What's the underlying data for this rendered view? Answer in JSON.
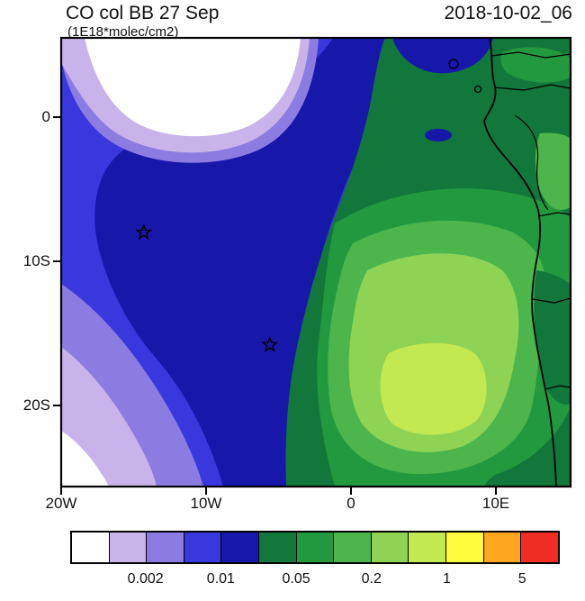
{
  "header": {
    "title": "CO col BB 27 Sep",
    "units_label": "(1E18*molec/cm2)",
    "timestamp": "2018-10-02_06"
  },
  "chart_data": {
    "type": "heatmap",
    "subtype": "filled-contour geographic map",
    "title": "CO col BB 27 Sep",
    "units_label": "(1E18*molec/cm2)",
    "timestamp": "2018-10-02_06",
    "region": "Gulf of Guinea / southeastern Atlantic / west-central Africa",
    "lon_range": [
      -20,
      15.2
    ],
    "lat_range": [
      -25.6,
      5.5
    ],
    "lon_tick_labels": [
      "20W",
      "10W",
      "0",
      "10E"
    ],
    "lon_tick_values": [
      -20,
      -10,
      0,
      10
    ],
    "lat_tick_labels": [
      "0",
      "10S",
      "20S"
    ],
    "lat_tick_values": [
      0,
      -10,
      -20
    ],
    "grid": false,
    "colorbar_position": "bottom",
    "levels": [
      0.001,
      0.002,
      0.005,
      0.01,
      0.02,
      0.05,
      0.1,
      0.2,
      0.5,
      1,
      2,
      5
    ],
    "colors": [
      "#FFFFFF",
      "#C8B4EA",
      "#8C7CE2",
      "#3838DE",
      "#1717AA",
      "#11773A",
      "#23993F",
      "#4CB64C",
      "#8FD355",
      "#C3E952",
      "#FDFB3B",
      "#FFA51E",
      "#EF2D24"
    ],
    "colorbar_labels": [
      "0.002",
      "0.01",
      "0.05",
      "0.2",
      "1",
      "5"
    ],
    "markers": [
      {
        "symbol": "star",
        "lon": -14.3,
        "lat": -8.0
      },
      {
        "symbol": "star",
        "lon": -5.6,
        "lat": -15.8
      }
    ],
    "regions": [
      {
        "where": "ocean northwest, around 0-5N / 15W-5W",
        "value": "< 0.001 (white minimum)"
      },
      {
        "where": "central east Atlantic band containing star at 14W 8S",
        "value": "0.01 - 0.02 (dark blue)"
      },
      {
        "where": "southwest corner bands",
        "value": "0.001 - 0.005 (violet/lavender)"
      },
      {
        "where": "broad biomass-burning plume over SE Atlantic and Angola/Congo",
        "value": "0.05 - 0.5 (greens)"
      },
      {
        "where": "plume core near 4E 19S",
        "value": "0.5 - 1 (light yellow-green)"
      },
      {
        "where": "northeast land and coastal Gabon/Congo",
        "value": "0.02 - 0.1 (dark green with 0.01-0.02 blue patches)"
      }
    ]
  }
}
